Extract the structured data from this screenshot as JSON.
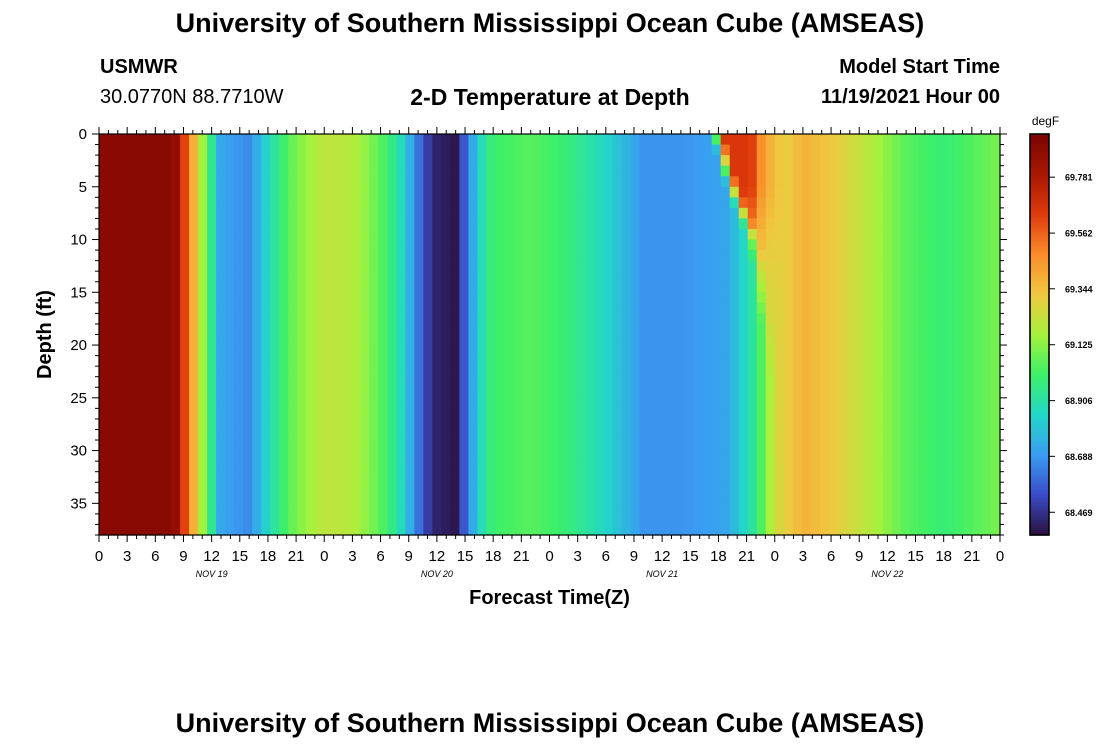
{
  "header": {
    "title": "University of Southern Mississippi Ocean Cube (AMSEAS)",
    "station": "USMWR",
    "coords": "30.0770N  88.7710W",
    "plot_title": "2-D Temperature at Depth",
    "start_label": "Model Start Time",
    "start_value": "11/19/2021 Hour 00"
  },
  "footer": {
    "title": "University of Southern Mississippi Ocean Cube (AMSEAS)"
  },
  "chart_data": {
    "type": "heatmap",
    "title": "2-D Temperature at Depth",
    "xlabel": "Forecast Time(Z)",
    "ylabel": "Depth (ft)",
    "colorbar_unit": "degF",
    "colorbar_ticks": [
      69.781,
      69.562,
      69.344,
      69.125,
      68.906,
      68.688,
      68.469
    ],
    "colorbar_range": [
      68.38,
      69.95
    ],
    "colorbar_colors": [
      "#2a0f3e",
      "#3a4cc8",
      "#3a9cf2",
      "#22d8c8",
      "#3cf068",
      "#a6f23c",
      "#f0c840",
      "#fa8c2a",
      "#de3a0c",
      "#a81802",
      "#7a0402"
    ],
    "x_hours": [
      0,
      96
    ],
    "x_tick_labels": [
      "0",
      "3",
      "6",
      "9",
      "12",
      "15",
      "18",
      "21",
      "0",
      "3",
      "6",
      "9",
      "12",
      "15",
      "18",
      "21",
      "0",
      "3",
      "6",
      "9",
      "12",
      "15",
      "18",
      "21",
      "0",
      "3",
      "6",
      "9",
      "12",
      "15",
      "18",
      "21",
      "0"
    ],
    "day_labels": [
      {
        "label": "NOV 19",
        "hour": 12
      },
      {
        "label": "NOV 20",
        "hour": 36
      },
      {
        "label": "NOV 21",
        "hour": 60
      },
      {
        "label": "NOV 22",
        "hour": 84
      }
    ],
    "y_ticks": [
      0,
      5,
      10,
      15,
      20,
      25,
      30,
      35
    ],
    "ylim": [
      0,
      38
    ],
    "time_profile": [
      [
        0,
        69.9
      ],
      [
        8,
        69.9
      ],
      [
        10,
        69.4
      ],
      [
        11.5,
        69.05
      ],
      [
        13,
        68.72
      ],
      [
        16,
        68.66
      ],
      [
        19,
        68.95
      ],
      [
        21,
        69.1
      ],
      [
        24,
        69.22
      ],
      [
        27,
        69.2
      ],
      [
        30,
        69.05
      ],
      [
        32,
        68.9
      ],
      [
        34,
        68.62
      ],
      [
        35.5,
        68.44
      ],
      [
        38,
        68.4
      ],
      [
        40.5,
        68.85
      ],
      [
        42,
        69.0
      ],
      [
        46,
        69.05
      ],
      [
        50,
        68.98
      ],
      [
        54,
        68.85
      ],
      [
        58,
        68.68
      ],
      [
        62,
        68.68
      ],
      [
        67,
        68.72
      ],
      [
        70,
        68.95
      ],
      [
        72,
        69.25
      ],
      [
        75,
        69.38
      ],
      [
        78,
        69.32
      ],
      [
        82,
        69.2
      ],
      [
        86,
        69.05
      ],
      [
        90,
        68.98
      ],
      [
        96,
        69.1
      ]
    ],
    "warm_event": {
      "front_depth_hour": [
        [
          0,
          65.2
        ],
        [
          5,
          66.8
        ],
        [
          10,
          69.2
        ],
        [
          16,
          70.2
        ],
        [
          20,
          71.0
        ],
        [
          25,
          71.8
        ],
        [
          32,
          72.2
        ],
        [
          38,
          72.3
        ]
      ],
      "core_depth_value": [
        [
          0,
          69.65
        ],
        [
          5,
          69.65
        ],
        [
          10,
          69.5
        ],
        [
          15,
          69.4
        ],
        [
          20,
          69.38
        ],
        [
          38,
          69.35
        ]
      ],
      "core_end_hour": 73
    }
  }
}
